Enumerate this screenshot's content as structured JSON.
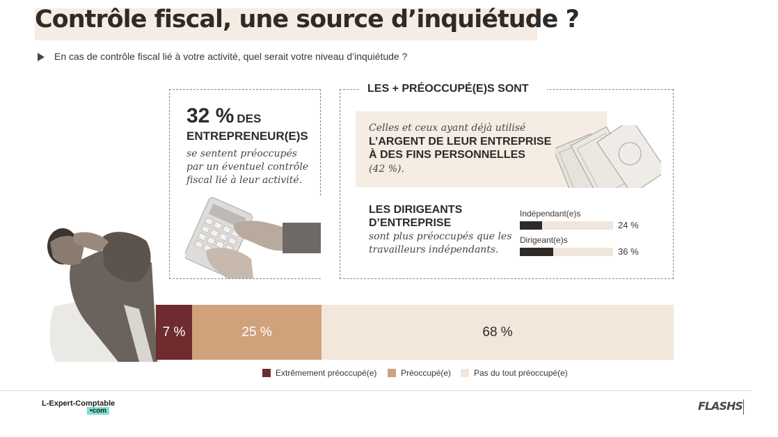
{
  "title": "Contrôle fiscal, une source d’inquiétude ?",
  "subtitle": "En cas de contrôle fiscal lié à votre activité, quel serait votre niveau d’inquiétude ?",
  "left_box": {
    "stat_value": "32 %",
    "stat_des": "DES",
    "stat_entrepreneurs": "ENTREPRENEUR(E)S",
    "description": "se sentent préoccupés par un éventuel contrôle fiscal lié à leur activité."
  },
  "right_box": {
    "header": "LES + PRÉOCCUPÉ(E)S SONT",
    "money": {
      "intro": "Celles et ceux ayant déjà utilisé",
      "bold_line1": "L’ARGENT DE LEUR ENTREPRISE",
      "bold_line2": "À DES FINS PERSONNELLES",
      "pct": "(42 %)."
    },
    "dirigeants": {
      "title_line1": "LES DIRIGEANTS",
      "title_line2": "D’ENTREPRISE",
      "desc_line1": "sont plus préoccupés que les",
      "desc_line2": "travailleurs indépendants."
    }
  },
  "chart_data": [
    {
      "type": "bar",
      "orientation": "horizontal",
      "categories": [
        "Indépendant(e)s",
        "Dirigeant(e)s"
      ],
      "values": [
        24,
        36
      ],
      "value_labels": [
        "24 %",
        "36 %"
      ],
      "xlim": [
        0,
        100
      ],
      "color": "#2e2a27",
      "track_color": "#f0e6dc"
    },
    {
      "type": "bar",
      "orientation": "horizontal",
      "stacked": true,
      "series": [
        {
          "name": "Extrêmement préoccupé(e)",
          "values": [
            7
          ],
          "label": "7 %",
          "color": "#6e2c2e",
          "text_color": "#ffffff"
        },
        {
          "name": "Préoccupé(e)",
          "values": [
            25
          ],
          "label": "25 %",
          "color": "#cfa27c",
          "text_color": "#ffffff"
        },
        {
          "name": "Pas du tout préoccupé(e)",
          "values": [
            68
          ],
          "label": "68 %",
          "color": "#f3e6db",
          "text_color": "#2e2a27"
        }
      ],
      "total": 100,
      "legend_position": "bottom"
    }
  ],
  "footer": {
    "brand_left": "L-Expert-Comptable",
    "brand_left_suffix": "•com",
    "brand_right": "FLASHS"
  },
  "colors": {
    "title_highlight": "#f5ece3",
    "panel_bg": "#f5ece3",
    "text_dark": "#2e2a27"
  }
}
